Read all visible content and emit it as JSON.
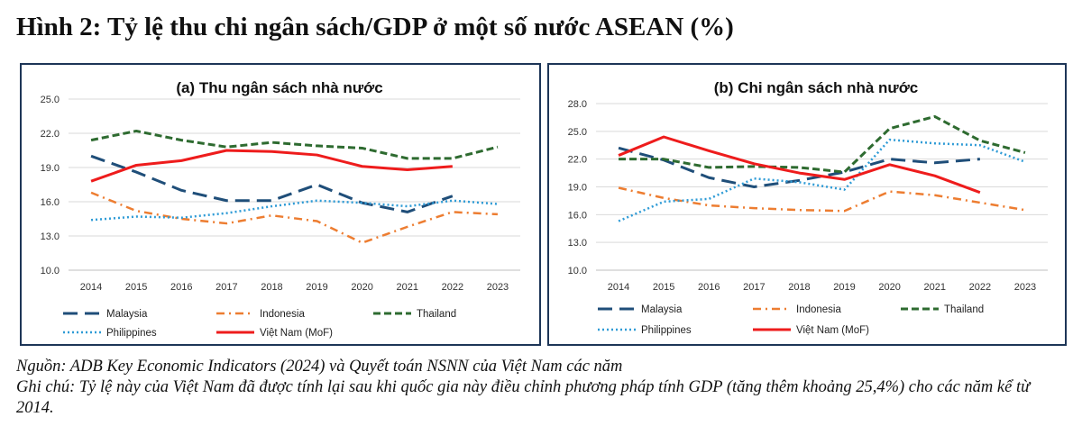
{
  "figure_title": "Hình 2: Tỷ lệ thu chi ngân sách/GDP ở một số nước ASEAN (%)",
  "source_note": "Nguồn: ADB Key Economic Indicators (2024) và Quyết toán NSNN của Việt Nam các năm",
  "remark_note": "Ghi chú: Tỷ lệ này của Việt Nam đã được tính lại sau khi quốc gia này điều chỉnh phương pháp tính GDP (tăng thêm khoảng 25,4%) cho các năm kể từ 2014.",
  "colors": {
    "Malaysia": "#1f4e79",
    "Indonesia": "#ed7d31",
    "Thailand": "#2e6b30",
    "Philippines": "#2e9bd6",
    "Việt Nam (MoF)": "#ee1c1c",
    "border": "#1d3557"
  },
  "chart_data": [
    {
      "type": "line",
      "title": "(a) Thu ngân sách nhà nước",
      "xlabel": "",
      "ylabel": "",
      "categories": [
        "2014",
        "2015",
        "2016",
        "2017",
        "2018",
        "2019",
        "2020",
        "2021",
        "2022",
        "2023"
      ],
      "ylim": [
        10.0,
        25.0
      ],
      "yticks": [
        "10.0",
        "13.0",
        "16.0",
        "19.0",
        "22.0",
        "25.0"
      ],
      "series": [
        {
          "name": "Malaysia",
          "values": [
            20.0,
            18.6,
            17.0,
            16.1,
            16.1,
            17.5,
            15.9,
            15.1,
            16.5,
            null
          ]
        },
        {
          "name": "Indonesia",
          "values": [
            16.8,
            15.2,
            14.5,
            14.1,
            14.8,
            14.3,
            12.4,
            13.8,
            15.1,
            14.9
          ]
        },
        {
          "name": "Thailand",
          "values": [
            21.4,
            22.2,
            21.4,
            20.8,
            21.2,
            20.9,
            20.7,
            19.8,
            19.8,
            20.8
          ]
        },
        {
          "name": "Philippines",
          "values": [
            14.4,
            14.7,
            14.6,
            15.0,
            15.6,
            16.1,
            15.9,
            15.6,
            16.1,
            15.8
          ]
        },
        {
          "name": "Việt Nam (MoF)",
          "values": [
            17.8,
            19.2,
            19.6,
            20.5,
            20.4,
            20.1,
            19.1,
            18.8,
            19.1,
            null
          ]
        }
      ],
      "legend_position": "bottom"
    },
    {
      "type": "line",
      "title": "(b) Chi ngân sách nhà nước",
      "xlabel": "",
      "ylabel": "",
      "categories": [
        "2014",
        "2015",
        "2016",
        "2017",
        "2018",
        "2019",
        "2020",
        "2021",
        "2022",
        "2023"
      ],
      "ylim": [
        10.0,
        28.0
      ],
      "yticks": [
        "10.0",
        "13.0",
        "16.0",
        "19.0",
        "22.0",
        "25.0",
        "28.0"
      ],
      "series": [
        {
          "name": "Malaysia",
          "values": [
            23.2,
            21.9,
            20.0,
            19.0,
            19.7,
            20.6,
            22.0,
            21.6,
            22.0,
            null
          ]
        },
        {
          "name": "Indonesia",
          "values": [
            18.9,
            17.8,
            17.0,
            16.7,
            16.5,
            16.4,
            18.5,
            18.1,
            17.3,
            16.5
          ]
        },
        {
          "name": "Thailand",
          "values": [
            22.0,
            22.0,
            21.1,
            21.2,
            21.1,
            20.6,
            25.3,
            26.6,
            24.0,
            22.7
          ]
        },
        {
          "name": "Philippines",
          "values": [
            15.3,
            17.4,
            17.7,
            19.9,
            19.5,
            18.7,
            24.1,
            23.7,
            23.5,
            21.7
          ]
        },
        {
          "name": "Việt Nam (MoF)",
          "values": [
            22.4,
            24.4,
            22.9,
            21.5,
            20.5,
            19.8,
            21.4,
            20.2,
            18.4,
            null
          ]
        }
      ],
      "legend_position": "bottom"
    }
  ]
}
